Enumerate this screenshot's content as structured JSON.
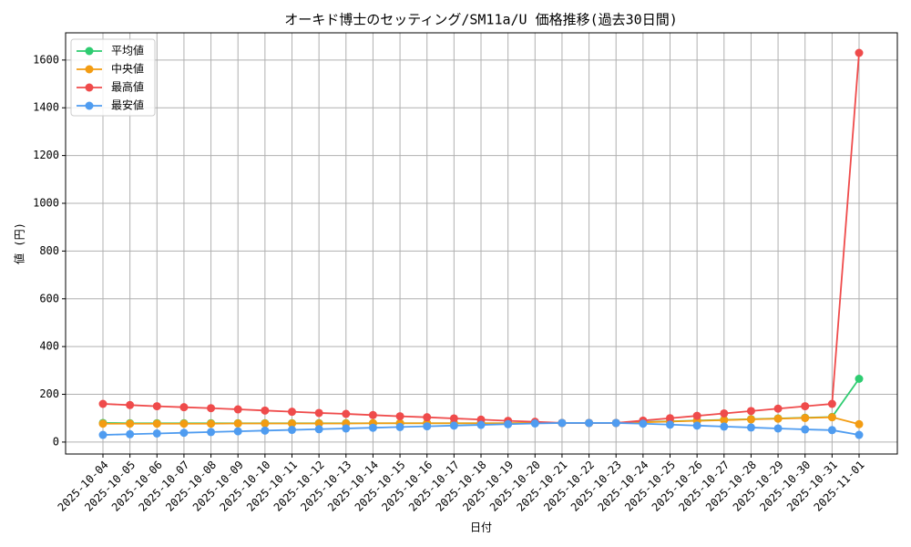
{
  "chart_data": {
    "type": "line",
    "title": "オーキド博士のセッティング/SM11a/U 価格推移(過去30日間)",
    "x_label": "日付",
    "y_label": "値 (円)",
    "categories": [
      "2025-10-04",
      "2025-10-05",
      "2025-10-06",
      "2025-10-07",
      "2025-10-08",
      "2025-10-09",
      "2025-10-10",
      "2025-10-11",
      "2025-10-12",
      "2025-10-13",
      "2025-10-14",
      "2025-10-15",
      "2025-10-16",
      "2025-10-17",
      "2025-10-18",
      "2025-10-19",
      "2025-10-20",
      "2025-10-21",
      "2025-10-22",
      "2025-10-23",
      "2025-10-24",
      "2025-10-25",
      "2025-10-26",
      "2025-10-27",
      "2025-10-28",
      "2025-10-29",
      "2025-10-30",
      "2025-10-31",
      "2025-11-01"
    ],
    "series": [
      {
        "name": "平均値",
        "color": "#2ecc71",
        "values": [
          80,
          79,
          79,
          79,
          79,
          79,
          79,
          79,
          79,
          79,
          79,
          79,
          79,
          79,
          79,
          79,
          80,
          80,
          80,
          80,
          84,
          87,
          90,
          93,
          96,
          99,
          102,
          105,
          265
        ]
      },
      {
        "name": "中央値",
        "color": "#f39c12",
        "values": [
          77,
          77,
          77,
          77,
          77,
          78,
          78,
          78,
          78,
          78,
          79,
          79,
          79,
          79,
          79,
          79,
          80,
          80,
          80,
          80,
          83,
          86,
          89,
          92,
          95,
          98,
          101,
          104,
          75
        ]
      },
      {
        "name": "最高値",
        "color": "#ef4b4b",
        "values": [
          160,
          155,
          150,
          146,
          142,
          137,
          132,
          127,
          122,
          118,
          113,
          108,
          104,
          99,
          94,
          89,
          85,
          80,
          80,
          80,
          90,
          100,
          110,
          120,
          130,
          140,
          150,
          160,
          1630
        ]
      },
      {
        "name": "最安値",
        "color": "#4f9cf0",
        "values": [
          30,
          33,
          36,
          39,
          42,
          45,
          48,
          51,
          54,
          57,
          60,
          63,
          66,
          69,
          72,
          75,
          78,
          80,
          80,
          80,
          77,
          73,
          69,
          65,
          61,
          57,
          53,
          50,
          30
        ]
      }
    ],
    "ylim": [
      -50,
      1714
    ],
    "yticks": [
      0,
      200,
      400,
      600,
      800,
      1000,
      1200,
      1400,
      1600
    ],
    "grid": true,
    "legend": "upper left"
  }
}
